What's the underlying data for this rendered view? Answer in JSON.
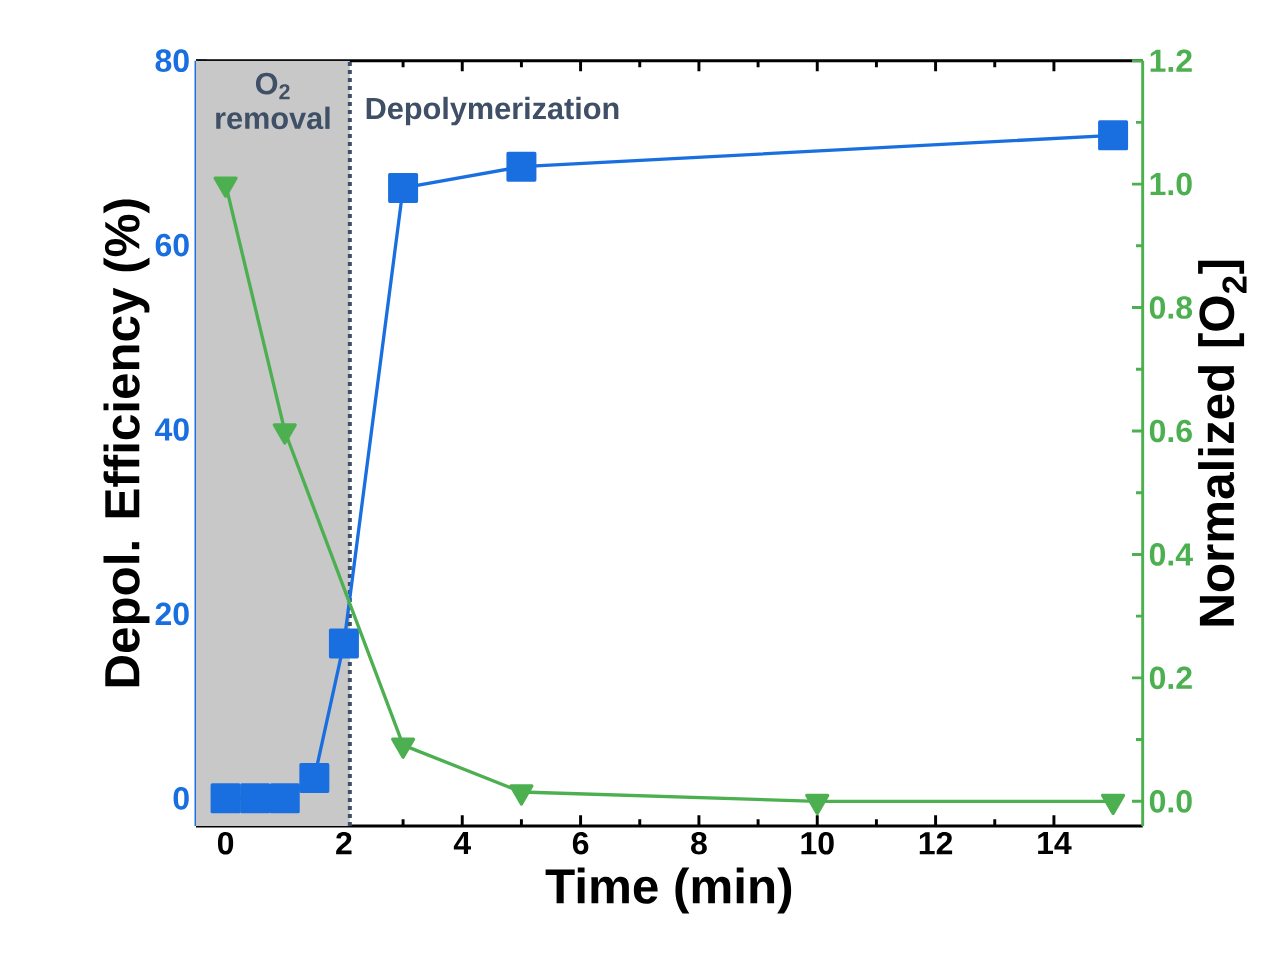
{
  "chart_data": {
    "type": "line",
    "x": [
      0,
      0.5,
      1,
      1.5,
      2,
      3,
      5,
      15
    ],
    "series": [
      {
        "color": "#1a6fe0",
        "marker": "square",
        "values": [
          0,
          0,
          0,
          2.2,
          16.8,
          66.2,
          68.5,
          71.9
        ]
      },
      {
        "color": "#4caf50",
        "marker": "triangle",
        "axis": "y2",
        "x": [
          0,
          1,
          3,
          5,
          10,
          15
        ],
        "values": [
          1.0,
          0.6,
          0.091,
          0.015,
          0.0,
          0.0
        ]
      }
    ],
    "line_style": "solid",
    "xlabel": "Time (min)",
    "ylabel": "Depol. Efficiency (%)",
    "y2label": "Normalized [O$_{2}$]",
    "xlim": [
      -0.5,
      15.5
    ],
    "xticks": [
      0,
      2,
      4,
      6,
      8,
      10,
      12,
      14
    ],
    "ylim": [
      -3,
      80
    ],
    "yticks": [
      0,
      20,
      40,
      60,
      80
    ],
    "y2lim": [
      -0.04,
      1.2
    ],
    "y2ticks": [
      {
        "value": 0,
        "label": "0.0"
      },
      0.2,
      0.4,
      0.6,
      0.8,
      {
        "value": 1,
        "label": "1.0"
      },
      1.2
    ],
    "bands": [
      {
        "axis": "x",
        "from": -0.5,
        "to": 2.1,
        "label": "O$_{2}$ removal",
        "color": "#c8c8c8"
      }
    ],
    "ref_lines": [
      {
        "axis": "x",
        "value": 2.1,
        "label": "Depolymerization",
        "color": "#3f4f66",
        "line_style": "dotted"
      }
    ],
    "grid": false
  }
}
